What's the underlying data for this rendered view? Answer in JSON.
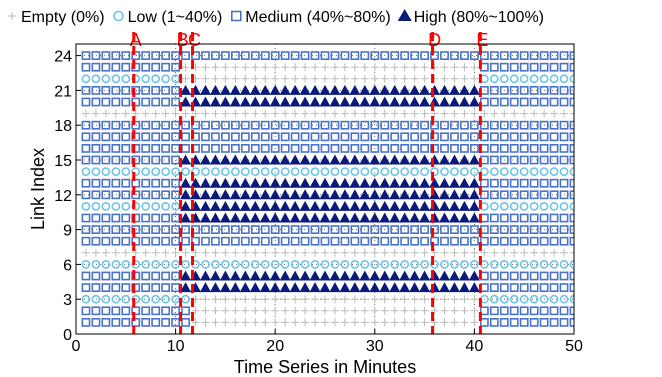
{
  "chart_data": {
    "type": "scatter",
    "xlabel": "Time Series in Minutes",
    "ylabel": "Link Index",
    "xlim": [
      0,
      50
    ],
    "ylim": [
      0,
      25
    ],
    "xticks": [
      0,
      10,
      20,
      30,
      40,
      50
    ],
    "yticks": [
      0,
      3,
      6,
      9,
      12,
      15,
      18,
      21,
      24
    ],
    "grid": "dotted",
    "legend_position": "top",
    "legend": [
      {
        "key": "empty",
        "label": "Empty (0%)",
        "symbol": "plus",
        "color": "#bbbbbb"
      },
      {
        "key": "low",
        "label": "Low (1~40%)",
        "symbol": "circle",
        "color": "#6cc3e6"
      },
      {
        "key": "medium",
        "label": "Medium (40%~80%)",
        "symbol": "square",
        "color": "#4a73c7"
      },
      {
        "key": "high",
        "label": "High (80%~100%)",
        "symbol": "triangle",
        "color": "#0a1a7a"
      }
    ],
    "time_step_minutes": 1,
    "vertical_markers": [
      {
        "label": "A",
        "x": 5.8
      },
      {
        "label": "B",
        "x": 10.5
      },
      {
        "label": "C",
        "x": 11.7
      },
      {
        "label": "D",
        "x": 35.8
      },
      {
        "label": "E",
        "x": 40.6
      }
    ],
    "marker_color": "#ff0000",
    "links": [
      {
        "link": 1,
        "segments": [
          [
            1,
            10,
            "medium"
          ],
          [
            11,
            11,
            "medium"
          ],
          [
            12,
            40,
            "empty"
          ],
          [
            41,
            50,
            "medium"
          ]
        ]
      },
      {
        "link": 2,
        "segments": [
          [
            1,
            10,
            "medium"
          ],
          [
            11,
            11,
            "medium"
          ],
          [
            12,
            40,
            "empty"
          ],
          [
            41,
            50,
            "medium"
          ]
        ]
      },
      {
        "link": 3,
        "segments": [
          [
            1,
            10,
            "low"
          ],
          [
            11,
            11,
            "low"
          ],
          [
            12,
            40,
            "empty"
          ],
          [
            41,
            50,
            "low"
          ]
        ]
      },
      {
        "link": 4,
        "segments": [
          [
            1,
            10,
            "medium"
          ],
          [
            11,
            11,
            "high"
          ],
          [
            12,
            40,
            "high"
          ],
          [
            41,
            50,
            "medium"
          ]
        ]
      },
      {
        "link": 5,
        "segments": [
          [
            1,
            10,
            "medium"
          ],
          [
            11,
            11,
            "high"
          ],
          [
            12,
            40,
            "high"
          ],
          [
            41,
            50,
            "medium"
          ]
        ]
      },
      {
        "link": 6,
        "segments": [
          [
            1,
            10,
            "low"
          ],
          [
            11,
            11,
            "low"
          ],
          [
            12,
            40,
            "low"
          ],
          [
            41,
            50,
            "low"
          ]
        ]
      },
      {
        "link": 7,
        "segments": [
          [
            1,
            10,
            "empty"
          ],
          [
            11,
            11,
            "empty"
          ],
          [
            12,
            40,
            "empty"
          ],
          [
            41,
            50,
            "empty"
          ]
        ]
      },
      {
        "link": 8,
        "segments": [
          [
            1,
            10,
            "medium"
          ],
          [
            11,
            11,
            "medium"
          ],
          [
            12,
            40,
            "medium"
          ],
          [
            41,
            50,
            "medium"
          ]
        ]
      },
      {
        "link": 9,
        "segments": [
          [
            1,
            10,
            "medium"
          ],
          [
            11,
            11,
            "medium"
          ],
          [
            12,
            40,
            "medium"
          ],
          [
            41,
            50,
            "medium"
          ]
        ]
      },
      {
        "link": 10,
        "segments": [
          [
            1,
            10,
            "medium"
          ],
          [
            11,
            11,
            "high"
          ],
          [
            12,
            40,
            "high"
          ],
          [
            41,
            50,
            "medium"
          ]
        ]
      },
      {
        "link": 11,
        "segments": [
          [
            1,
            10,
            "low"
          ],
          [
            11,
            11,
            "high"
          ],
          [
            12,
            40,
            "high"
          ],
          [
            41,
            50,
            "low"
          ]
        ]
      },
      {
        "link": 12,
        "segments": [
          [
            1,
            10,
            "medium"
          ],
          [
            11,
            11,
            "high"
          ],
          [
            12,
            40,
            "high"
          ],
          [
            41,
            50,
            "medium"
          ]
        ]
      },
      {
        "link": 13,
        "segments": [
          [
            1,
            10,
            "medium"
          ],
          [
            11,
            11,
            "high"
          ],
          [
            12,
            40,
            "high"
          ],
          [
            41,
            50,
            "medium"
          ]
        ]
      },
      {
        "link": 14,
        "segments": [
          [
            1,
            10,
            "low"
          ],
          [
            11,
            11,
            "low"
          ],
          [
            12,
            40,
            "low"
          ],
          [
            41,
            50,
            "low"
          ]
        ]
      },
      {
        "link": 15,
        "segments": [
          [
            1,
            10,
            "medium"
          ],
          [
            11,
            11,
            "high"
          ],
          [
            12,
            40,
            "high"
          ],
          [
            41,
            50,
            "medium"
          ]
        ]
      },
      {
        "link": 16,
        "segments": [
          [
            1,
            10,
            "medium"
          ],
          [
            11,
            11,
            "medium"
          ],
          [
            12,
            40,
            "medium"
          ],
          [
            41,
            50,
            "medium"
          ]
        ]
      },
      {
        "link": 17,
        "segments": [
          [
            1,
            10,
            "medium"
          ],
          [
            11,
            11,
            "medium"
          ],
          [
            12,
            40,
            "medium"
          ],
          [
            41,
            50,
            "medium"
          ]
        ]
      },
      {
        "link": 18,
        "segments": [
          [
            1,
            10,
            "medium"
          ],
          [
            11,
            11,
            "medium"
          ],
          [
            12,
            40,
            "medium"
          ],
          [
            41,
            50,
            "medium"
          ]
        ]
      },
      {
        "link": 19,
        "segments": [
          [
            1,
            10,
            "empty"
          ],
          [
            11,
            11,
            "empty"
          ],
          [
            12,
            40,
            "empty"
          ],
          [
            41,
            50,
            "empty"
          ]
        ]
      },
      {
        "link": 20,
        "segments": [
          [
            1,
            10,
            "medium"
          ],
          [
            11,
            11,
            "high"
          ],
          [
            12,
            40,
            "high"
          ],
          [
            41,
            50,
            "medium"
          ]
        ]
      },
      {
        "link": 21,
        "segments": [
          [
            1,
            10,
            "medium"
          ],
          [
            11,
            11,
            "high"
          ],
          [
            12,
            40,
            "high"
          ],
          [
            41,
            50,
            "medium"
          ]
        ]
      },
      {
        "link": 22,
        "segments": [
          [
            1,
            10,
            "low"
          ],
          [
            11,
            11,
            "empty"
          ],
          [
            12,
            40,
            "empty"
          ],
          [
            41,
            50,
            "low"
          ]
        ]
      },
      {
        "link": 23,
        "segments": [
          [
            1,
            10,
            "medium"
          ],
          [
            11,
            11,
            "empty"
          ],
          [
            12,
            40,
            "empty"
          ],
          [
            41,
            50,
            "medium"
          ]
        ]
      },
      {
        "link": 24,
        "segments": [
          [
            1,
            10,
            "medium"
          ],
          [
            11,
            11,
            "medium"
          ],
          [
            12,
            40,
            "medium"
          ],
          [
            41,
            50,
            "medium"
          ]
        ]
      }
    ]
  }
}
